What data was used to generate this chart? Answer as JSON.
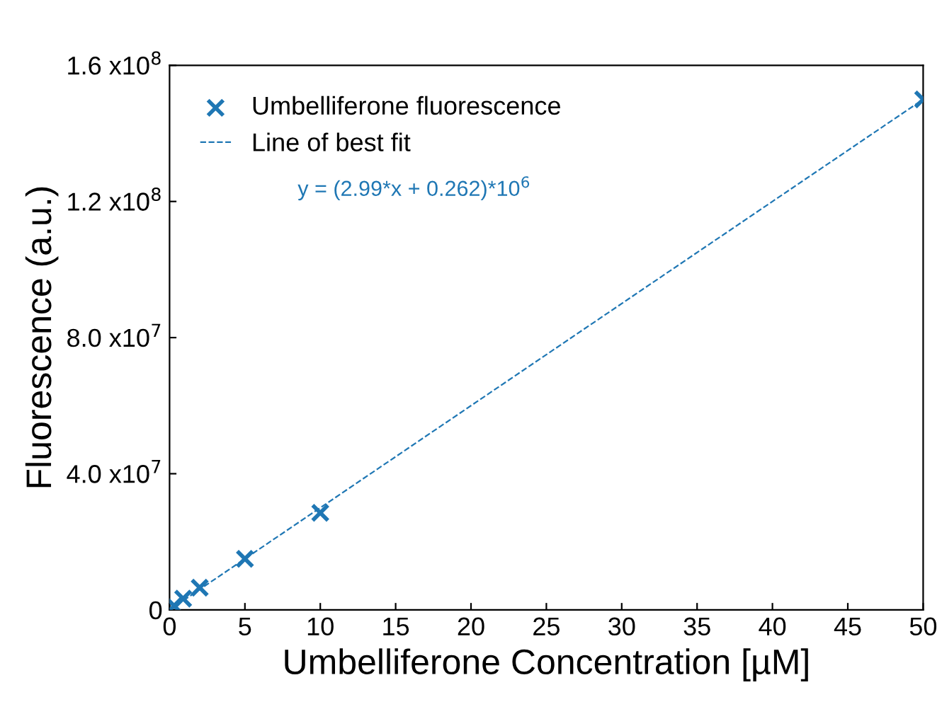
{
  "chart_data": {
    "type": "scatter",
    "xlabel": "Umbelliferone Concentration [µM]",
    "ylabel": "Fluorescence (a.u.)",
    "xlim": [
      0,
      50
    ],
    "xticks": [
      0,
      5,
      10,
      15,
      20,
      25,
      30,
      35,
      40,
      45,
      50
    ],
    "ylim": [
      0,
      160000000
    ],
    "yticks": [
      {
        "value": 0,
        "label": "0"
      },
      {
        "value": 40000000,
        "label": "4.0 x10$^{7}$"
      },
      {
        "value": 80000000,
        "label": "8.0 x10$^{7}$"
      },
      {
        "value": 120000000,
        "label": "1.2 x10$^{8}$"
      },
      {
        "value": 160000000,
        "label": "1.6 x10$^{8}$"
      }
    ],
    "series": [
      {
        "name": "Umbelliferone fluorescence",
        "color": "#1f77b4",
        "marker": "cross",
        "x": [
          0.3,
          0.9,
          2,
          5,
          10,
          50
        ],
        "values": [
          1200000,
          3300000,
          6500000,
          15000000,
          28500000,
          150000000
        ]
      },
      {
        "name": "Line of best fit",
        "type": "line",
        "color": "#1f77b4",
        "line_style": "dashed",
        "x": [
          0,
          50
        ],
        "values": [
          0,
          150000000
        ]
      }
    ],
    "annotations": [
      "y = (2.99*x + 0.262)*10$^{6}$"
    ],
    "legend": "top left",
    "grid": false
  }
}
